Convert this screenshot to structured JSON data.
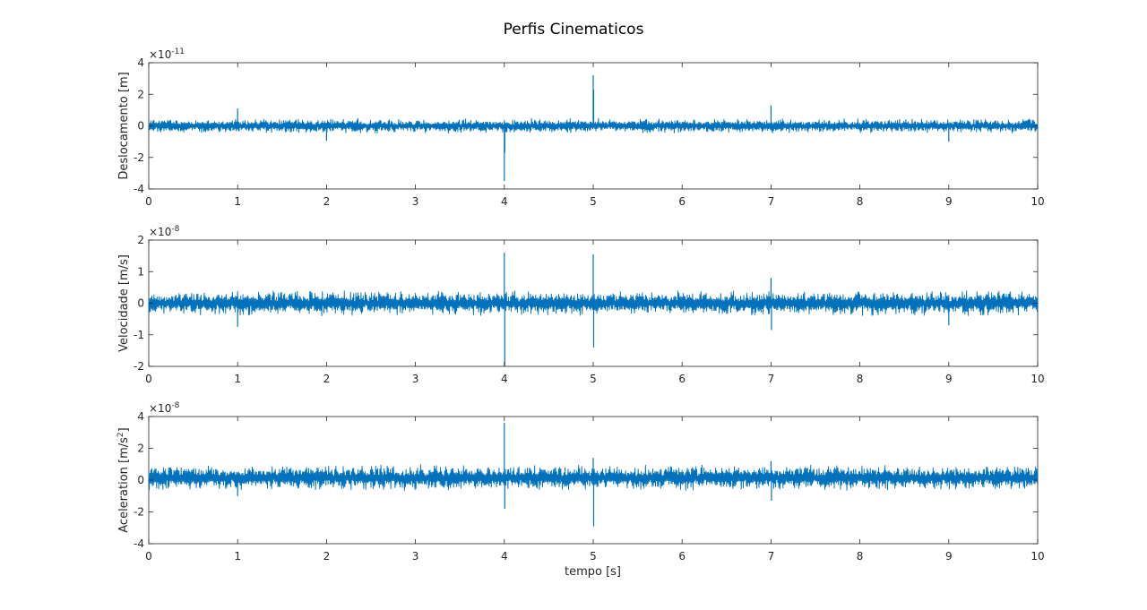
{
  "chart_data": {
    "title": "Perfis Cinematicos",
    "type": "line",
    "series_color": "#0072BD",
    "grid": false,
    "x_common": {
      "label": "tempo [s]",
      "range": [
        0,
        10
      ],
      "ticks": [
        0,
        1,
        2,
        3,
        4,
        5,
        6,
        7,
        8,
        9,
        10
      ]
    },
    "subplots": [
      {
        "ylabel": "Deslocamento [m]",
        "ylabel_sup": "",
        "ylabel_suffix": "",
        "ylim": [
          -4,
          4
        ],
        "yticks": [
          -4,
          -2,
          0,
          2,
          4
        ],
        "exponent_base": "10",
        "exponent": "-11",
        "noise_amplitude": 0.5,
        "baseline_offset": 0.0,
        "spikes": [
          {
            "x": 1.0,
            "y": 1.1
          },
          {
            "x": 2.0,
            "y": -0.95
          },
          {
            "x": 4.0,
            "y": -3.5
          },
          {
            "x": 4.005,
            "y": -1.7
          },
          {
            "x": 5.0,
            "y": 3.2
          },
          {
            "x": 5.005,
            "y": 2.3
          },
          {
            "x": 7.0,
            "y": 1.3
          },
          {
            "x": 9.0,
            "y": -1.0
          }
        ]
      },
      {
        "ylabel": "Velocidade [m/s]",
        "ylabel_sup": "",
        "ylabel_suffix": "",
        "ylim": [
          -2,
          2
        ],
        "yticks": [
          -2,
          -1,
          0,
          1,
          2
        ],
        "exponent_base": "10",
        "exponent": "-8",
        "noise_amplitude": 0.42,
        "baseline_offset": 0.0,
        "spikes": [
          {
            "x": 1.0,
            "y": -0.75
          },
          {
            "x": 4.0,
            "y": 1.6
          },
          {
            "x": 4.005,
            "y": -2.0
          },
          {
            "x": 5.0,
            "y": 1.55
          },
          {
            "x": 5.005,
            "y": -1.4
          },
          {
            "x": 7.0,
            "y": 0.8
          },
          {
            "x": 7.005,
            "y": -0.85
          },
          {
            "x": 9.0,
            "y": -0.7
          }
        ]
      },
      {
        "ylabel": "Aceleration [m/s",
        "ylabel_sup": "2",
        "ylabel_suffix": "]",
        "ylim": [
          -4,
          4
        ],
        "yticks": [
          -4,
          -2,
          0,
          2,
          4
        ],
        "exponent_base": "10",
        "exponent": "-8",
        "noise_amplitude": 0.85,
        "baseline_offset": 0.15,
        "spikes": [
          {
            "x": 1.0,
            "y": -1.0
          },
          {
            "x": 4.0,
            "y": 3.6
          },
          {
            "x": 4.005,
            "y": -1.8
          },
          {
            "x": 5.0,
            "y": 1.4
          },
          {
            "x": 5.005,
            "y": -2.9
          },
          {
            "x": 7.0,
            "y": 1.2
          },
          {
            "x": 7.005,
            "y": -1.3
          }
        ]
      }
    ]
  }
}
